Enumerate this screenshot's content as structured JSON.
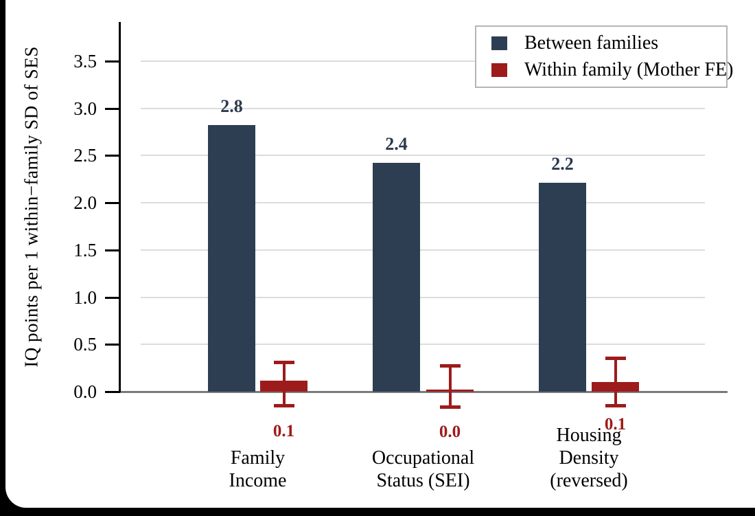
{
  "figure": {
    "background": "#ffffff",
    "frame_color": "#000000"
  },
  "chart_data": {
    "type": "bar",
    "title": "",
    "xlabel": "",
    "ylabel": "IQ points per 1 within−family SD of SES",
    "ylim": [
      -0.3,
      3.9
    ],
    "yticks": [
      "0.0",
      "0.5",
      "1.0",
      "1.5",
      "2.0",
      "2.5",
      "3.0",
      "3.5"
    ],
    "grid": true,
    "legend_position": "top-right",
    "categories": [
      {
        "lines": [
          "Family",
          "Income"
        ]
      },
      {
        "lines": [
          "Occupational",
          "Status (SEI)"
        ]
      },
      {
        "lines": [
          "Housing",
          "Density",
          "(reversed)"
        ]
      }
    ],
    "series": [
      {
        "name": "Between families",
        "color": "#2d3e52",
        "label_color": "#2b3a4e",
        "values": [
          2.82,
          2.42,
          2.21
        ],
        "value_labels": [
          "2.8",
          "2.4",
          "2.2"
        ]
      },
      {
        "name": "Within family (Mother FE)",
        "color": "#9d1b1b",
        "label_color": "#9d1b1b",
        "values": [
          0.12,
          0.02,
          0.1
        ],
        "value_labels": [
          "0.1",
          "0.0",
          "0.1"
        ],
        "ci_low": [
          -0.15,
          -0.17,
          -0.15
        ],
        "ci_high": [
          0.31,
          0.28,
          0.36
        ]
      }
    ],
    "axis_colors": {
      "axis": "#000000",
      "zero_line": "#7a7a7a",
      "gridline": "#dcdcdc",
      "legend_border": "#b5b5b5"
    }
  }
}
